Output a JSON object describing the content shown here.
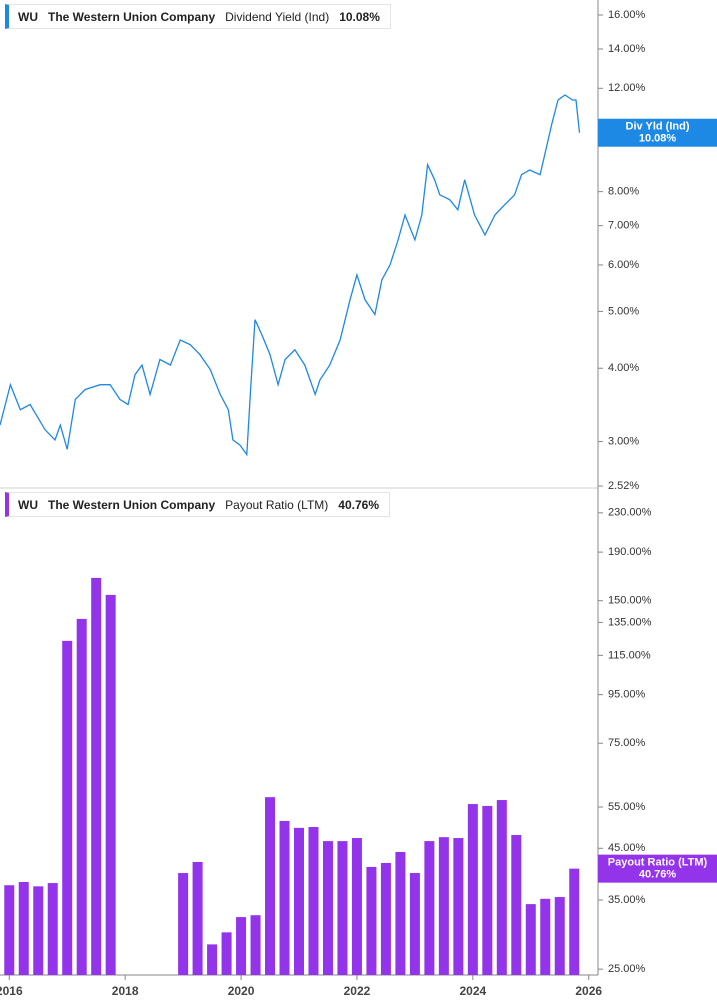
{
  "chart_data": [
    {
      "type": "line",
      "ticker": "WU",
      "company": "The Western Union Company",
      "badge_label": "Div Yld (Ind)",
      "current_label": "10.08%",
      "log_scale": true,
      "xlim": [
        2015.84,
        2026.16
      ],
      "ylim": [
        2.52,
        16.97
      ],
      "yticks": [
        {
          "value": 2.52,
          "label": "2.52%"
        },
        {
          "value": 3,
          "label": "3.00%"
        },
        {
          "value": 4,
          "label": "4.00%"
        },
        {
          "value": 5,
          "label": "5.00%"
        },
        {
          "value": 6,
          "label": "6.00%"
        },
        {
          "value": 7,
          "label": "7.00%"
        },
        {
          "value": 8,
          "label": "8.00%"
        },
        {
          "value": 12,
          "label": "12.00%"
        },
        {
          "value": 14,
          "label": "14.00%"
        },
        {
          "value": 16,
          "label": "16.00%"
        }
      ],
      "series": [
        {
          "name": "Dividend Yield (Ind)",
          "color": "#1e88e5",
          "x": [
            2015.84,
            2016.02,
            2016.19,
            2016.36,
            2016.62,
            2016.79,
            2016.88,
            2017.0,
            2017.14,
            2017.31,
            2017.57,
            2017.74,
            2017.91,
            2018.05,
            2018.17,
            2018.29,
            2018.43,
            2018.6,
            2018.78,
            2018.95,
            2019.12,
            2019.29,
            2019.47,
            2019.64,
            2019.78,
            2019.86,
            2019.98,
            2020.1,
            2020.16,
            2020.24,
            2020.36,
            2020.5,
            2020.64,
            2020.76,
            2020.93,
            2021.1,
            2021.28,
            2021.36,
            2021.53,
            2021.71,
            2021.88,
            2022.0,
            2022.14,
            2022.31,
            2022.43,
            2022.57,
            2022.71,
            2022.83,
            2023.0,
            2023.12,
            2023.22,
            2023.34,
            2023.43,
            2023.6,
            2023.74,
            2023.86,
            2024.03,
            2024.21,
            2024.38,
            2024.55,
            2024.72,
            2024.84,
            2024.98,
            2025.16,
            2025.24,
            2025.36,
            2025.47,
            2025.59,
            2025.72,
            2025.78,
            2025.84
          ],
          "values": [
            3.2,
            3.75,
            3.4,
            3.47,
            3.14,
            3.02,
            3.2,
            2.91,
            3.54,
            3.68,
            3.75,
            3.75,
            3.54,
            3.47,
            3.9,
            4.05,
            3.61,
            4.14,
            4.05,
            4.47,
            4.39,
            4.22,
            3.98,
            3.61,
            3.4,
            3.02,
            2.96,
            2.85,
            3.61,
            4.84,
            4.56,
            4.22,
            3.75,
            4.14,
            4.3,
            4.05,
            3.61,
            3.82,
            4.05,
            4.47,
            5.23,
            5.77,
            5.23,
            4.94,
            5.66,
            6.0,
            6.62,
            7.3,
            6.62,
            7.3,
            8.89,
            8.38,
            7.9,
            7.75,
            7.45,
            8.38,
            7.3,
            6.75,
            7.3,
            7.6,
            7.9,
            8.55,
            8.71,
            8.55,
            9.24,
            10.4,
            11.46,
            11.69,
            11.46,
            11.46,
            10.08
          ]
        }
      ]
    },
    {
      "type": "bar",
      "ticker": "WU",
      "company": "The Western Union Company",
      "current_label": "40.76%",
      "log_scale": true,
      "xlim": [
        2015.84,
        2026.16
      ],
      "ylim": [
        24.3,
        257
      ],
      "xticks": [
        2016,
        2018,
        2020,
        2022,
        2024,
        2026
      ],
      "yticks": [
        {
          "value": 25,
          "label": "25.00%"
        },
        {
          "value": 35,
          "label": "35.00%"
        },
        {
          "value": 45,
          "label": "45.00%"
        },
        {
          "value": 55,
          "label": "55.00%"
        },
        {
          "value": 75,
          "label": "75.00%"
        },
        {
          "value": 95,
          "label": "95.00%"
        },
        {
          "value": 115,
          "label": "115.00%"
        },
        {
          "value": 135,
          "label": "135.00%"
        },
        {
          "value": 150,
          "label": "150.00%"
        },
        {
          "value": 190,
          "label": "190.00%"
        },
        {
          "value": 230,
          "label": "230.00%"
        }
      ],
      "series": [
        {
          "name": "Payout Ratio (LTM)",
          "color": "#9333ea",
          "x": [
            2016.0,
            2016.25,
            2016.5,
            2016.75,
            2017.0,
            2017.25,
            2017.5,
            2017.75,
            2018.0,
            2018.25,
            2018.5,
            2018.75,
            2019.0,
            2019.25,
            2019.5,
            2019.75,
            2020.0,
            2020.25,
            2020.5,
            2020.75,
            2021.0,
            2021.25,
            2021.5,
            2021.75,
            2022.0,
            2022.25,
            2022.5,
            2022.75,
            2023.0,
            2023.25,
            2023.5,
            2023.75,
            2024.0,
            2024.25,
            2024.5,
            2024.75,
            2025.0,
            2025.25,
            2025.5,
            2025.75
          ],
          "values": [
            37.6,
            38.2,
            37.4,
            38.0,
            123.4,
            137.3,
            167.6,
            154.3,
            null,
            null,
            null,
            null,
            39.9,
            42.1,
            28.2,
            29.9,
            32.2,
            32.5,
            57.7,
            51.4,
            49.7,
            49.9,
            46.6,
            46.6,
            47.3,
            41.1,
            41.9,
            44.2,
            39.9,
            46.6,
            47.5,
            47.3,
            55.8,
            55.3,
            56.9,
            48.0,
            34.3,
            35.2,
            35.5,
            40.76
          ]
        }
      ]
    }
  ]
}
